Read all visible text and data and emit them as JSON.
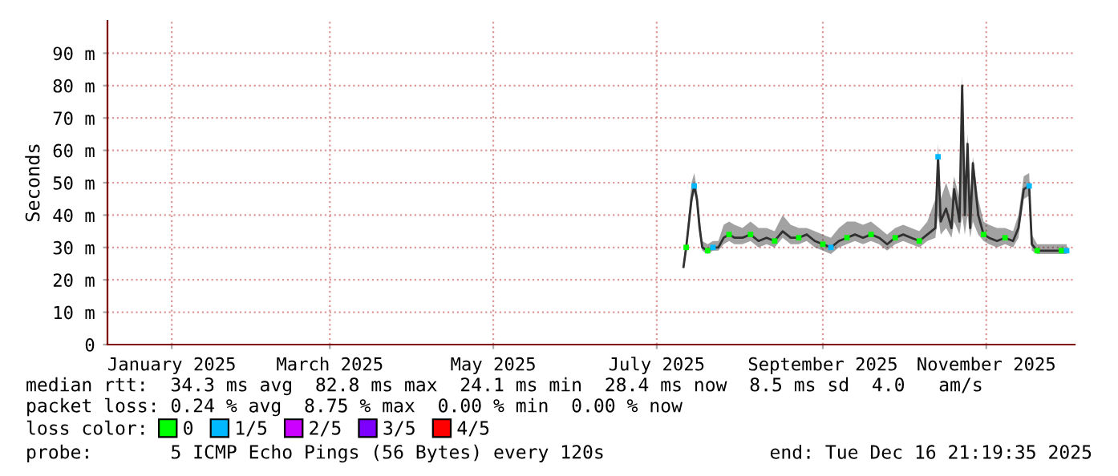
{
  "chart_data": {
    "type": "line",
    "ylabel": "Seconds",
    "legend_title": "loss color:",
    "x": [
      "2025-07-11",
      "2025-07-12",
      "2025-07-14",
      "2025-07-15",
      "2025-07-16",
      "2025-07-17",
      "2025-07-18",
      "2025-07-20",
      "2025-07-22",
      "2025-07-24",
      "2025-07-26",
      "2025-07-28",
      "2025-07-30",
      "2025-08-02",
      "2025-08-05",
      "2025-08-08",
      "2025-08-11",
      "2025-08-14",
      "2025-08-17",
      "2025-08-20",
      "2025-08-23",
      "2025-08-26",
      "2025-08-29",
      "2025-09-01",
      "2025-09-04",
      "2025-09-07",
      "2025-09-10",
      "2025-09-13",
      "2025-09-16",
      "2025-09-19",
      "2025-09-22",
      "2025-09-25",
      "2025-09-28",
      "2025-10-01",
      "2025-10-04",
      "2025-10-07",
      "2025-10-10",
      "2025-10-13",
      "2025-10-14",
      "2025-10-15",
      "2025-10-17",
      "2025-10-19",
      "2025-10-20",
      "2025-10-22",
      "2025-10-23",
      "2025-10-24",
      "2025-10-25",
      "2025-10-26",
      "2025-10-27",
      "2025-10-29",
      "2025-10-31",
      "2025-11-02",
      "2025-11-05",
      "2025-11-08",
      "2025-11-11",
      "2025-11-13",
      "2025-11-15",
      "2025-11-17",
      "2025-11-18",
      "2025-11-20",
      "2025-11-23",
      "2025-11-26",
      "2025-11-29",
      "2025-12-01"
    ],
    "series": [
      {
        "color": "#303030",
        "values": [
          24,
          30,
          45,
          49,
          45,
          36,
          30,
          29,
          30,
          30,
          33,
          34,
          33,
          33,
          34,
          32,
          33,
          32,
          35,
          33,
          33,
          34,
          32,
          31,
          30,
          32,
          33,
          34,
          33,
          34,
          33,
          31,
          33,
          34,
          33,
          32,
          34,
          36,
          58,
          38,
          42,
          36,
          48,
          38,
          80,
          40,
          62,
          36,
          56,
          40,
          34,
          33,
          32,
          33,
          32,
          36,
          48,
          49,
          31,
          29,
          29,
          29,
          29,
          29
        ],
        "lower": [
          23,
          29,
          43,
          47,
          43,
          34,
          29,
          28,
          29,
          29,
          31,
          32,
          31,
          31,
          32,
          30,
          31,
          30,
          33,
          31,
          31,
          32,
          30,
          29,
          28,
          30,
          31,
          32,
          31,
          32,
          31,
          29,
          31,
          32,
          31,
          30,
          32,
          33,
          40,
          34,
          36,
          33,
          38,
          34,
          40,
          34,
          40,
          33,
          38,
          34,
          32,
          31,
          30,
          31,
          30,
          33,
          45,
          46,
          29,
          28,
          28,
          28,
          28,
          28
        ],
        "upper": [
          26,
          32,
          50,
          53,
          48,
          40,
          32,
          31,
          32,
          32,
          37,
          38,
          37,
          36,
          38,
          36,
          36,
          35,
          40,
          37,
          36,
          36,
          35,
          34,
          33,
          36,
          38,
          38,
          37,
          38,
          36,
          34,
          36,
          37,
          36,
          35,
          38,
          45,
          62,
          45,
          50,
          45,
          52,
          45,
          83,
          50,
          65,
          44,
          58,
          45,
          38,
          37,
          36,
          36,
          35,
          40,
          52,
          53,
          34,
          31,
          31,
          31,
          31,
          31
        ]
      },
      {
        "type": "scatter",
        "name": "0",
        "color": "#00ff00",
        "marker": "square",
        "x": [
          "2025-07-12",
          "2025-07-20",
          "2025-07-28",
          "2025-08-05",
          "2025-08-14",
          "2025-08-23",
          "2025-09-01",
          "2025-09-10",
          "2025-09-19",
          "2025-09-28",
          "2025-10-07",
          "2025-10-31",
          "2025-11-08",
          "2025-11-20",
          "2025-11-29"
        ],
        "values": [
          30,
          29,
          34,
          34,
          32,
          33,
          31,
          33,
          34,
          33,
          32,
          34,
          33,
          29,
          29
        ]
      },
      {
        "type": "scatter",
        "name": "1/5",
        "color": "#00b8ff",
        "marker": "square",
        "x": [
          "2025-07-15",
          "2025-07-22",
          "2025-09-04",
          "2025-10-14",
          "2025-11-17",
          "2025-12-01"
        ],
        "values": [
          49,
          30,
          30,
          58,
          49,
          29
        ]
      },
      {
        "type": "scatter",
        "name": "2/5",
        "color": "#cc00ff",
        "marker": "square",
        "values": [
          null,
          null,
          null,
          null,
          null,
          null,
          null,
          null,
          null,
          null,
          null,
          null,
          null,
          null,
          null,
          null,
          null,
          null,
          null,
          null,
          null,
          null,
          null,
          null,
          null,
          null,
          null,
          null,
          null,
          null,
          null,
          null,
          null,
          null,
          null,
          null,
          null,
          null,
          null,
          null,
          null,
          null,
          null,
          null,
          null,
          null,
          null,
          null,
          null,
          null,
          null,
          null,
          null,
          null,
          null,
          null,
          null,
          null,
          null,
          null,
          null,
          null,
          null,
          null
        ]
      },
      {
        "type": "scatter",
        "name": "3/5",
        "color": "#7d00ff",
        "marker": "square",
        "values": [
          null,
          null,
          null,
          null,
          null,
          null,
          null,
          null,
          null,
          null,
          null,
          null,
          null,
          null,
          null,
          null,
          null,
          null,
          null,
          null,
          null,
          null,
          null,
          null,
          null,
          null,
          null,
          null,
          null,
          null,
          null,
          null,
          null,
          null,
          null,
          null,
          null,
          null,
          null,
          null,
          null,
          null,
          null,
          null,
          null,
          null,
          null,
          null,
          null,
          null,
          null,
          null,
          null,
          null,
          null,
          null,
          null,
          null,
          null,
          null,
          null,
          null,
          null,
          null
        ]
      },
      {
        "type": "scatter",
        "name": "4/5",
        "color": "#ff0000",
        "marker": "square",
        "values": [
          null,
          null,
          null,
          null,
          null,
          null,
          null,
          null,
          null,
          null,
          null,
          null,
          null,
          null,
          null,
          null,
          null,
          null,
          null,
          null,
          null,
          null,
          null,
          null,
          null,
          null,
          null,
          null,
          null,
          null,
          null,
          null,
          null,
          null,
          null,
          null,
          null,
          null,
          null,
          null,
          null,
          null,
          null,
          null,
          null,
          null,
          null,
          null,
          null,
          null,
          null,
          null,
          null,
          null,
          null,
          null,
          null,
          null,
          null,
          null,
          null,
          null,
          null,
          null
        ]
      }
    ],
    "xlim": [
      "2024-12-08",
      "2025-12-04"
    ],
    "xticks": [
      {
        "value": "2025-01-01",
        "label": "January 2025"
      },
      {
        "value": "2025-03-01",
        "label": "March 2025"
      },
      {
        "value": "2025-05-01",
        "label": "May 2025"
      },
      {
        "value": "2025-07-01",
        "label": "July 2025"
      },
      {
        "value": "2025-09-01",
        "label": "September 2025"
      },
      {
        "value": "2025-11-01",
        "label": "November 2025"
      }
    ],
    "ylim": [
      0,
      100
    ],
    "yticks": [
      0,
      {
        "value": 10,
        "label": "10 m"
      },
      {
        "value": 20,
        "label": "20 m"
      },
      {
        "value": 30,
        "label": "30 m"
      },
      {
        "value": 40,
        "label": "40 m"
      },
      {
        "value": 50,
        "label": "50 m"
      },
      {
        "value": 60,
        "label": "60 m"
      },
      {
        "value": 70,
        "label": "70 m"
      },
      {
        "value": 80,
        "label": "80 m"
      },
      {
        "value": 90,
        "label": "90 m"
      }
    ],
    "grid": true,
    "legend": "bottom",
    "annotations": [
      "median rtt:  34.3 ms avg  82.8 ms max  24.1 ms min  28.4 ms now  8.5 ms sd  4.0   am/s",
      "packet loss: 0.24 % avg  8.75 % max  0.00 % min  0.00 % now",
      "probe:       5 ICMP Echo Pings (56 Bytes) every 120s",
      "end: Tue Dec 16 21:19:35 2025"
    ]
  }
}
